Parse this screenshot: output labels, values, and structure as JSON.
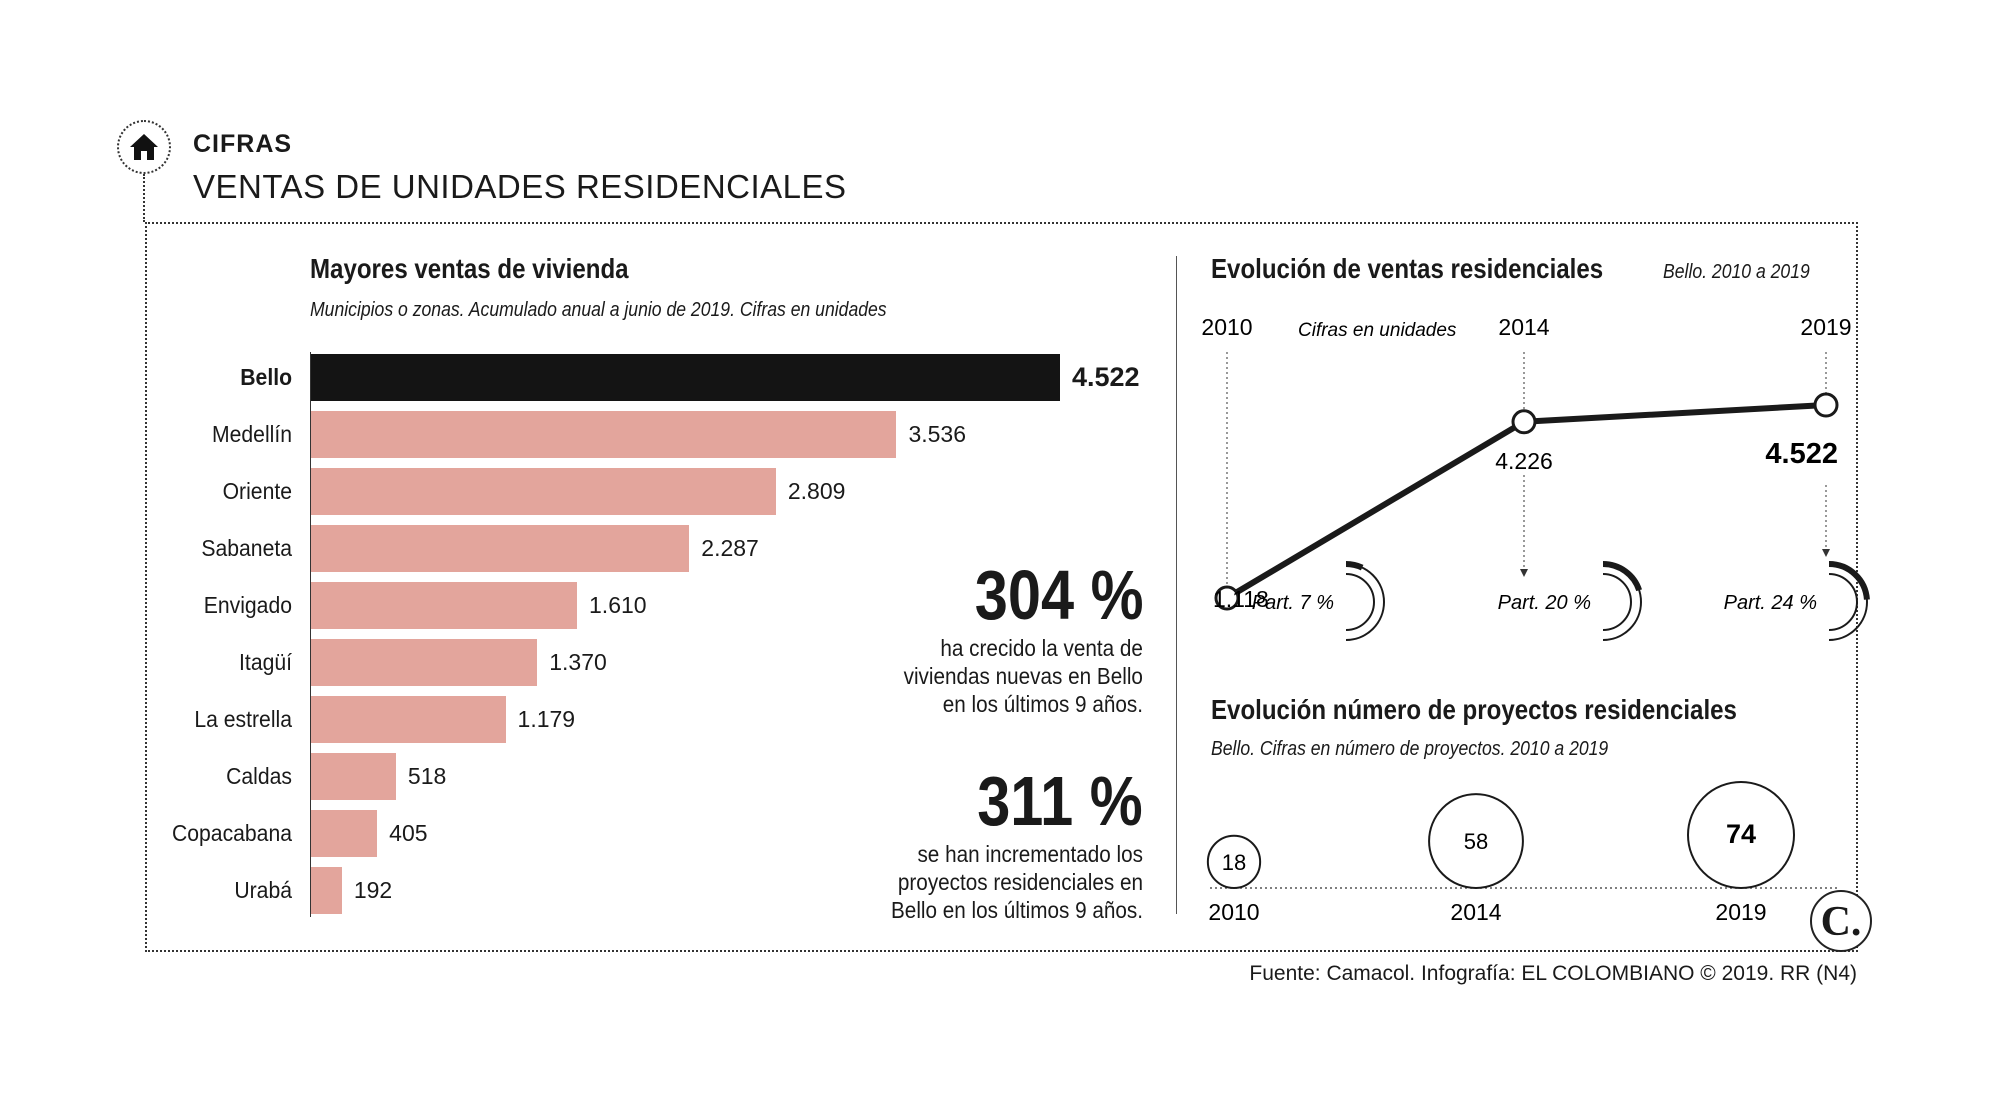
{
  "header": {
    "section": "CIFRAS",
    "title": "VENTAS DE UNIDADES RESIDENCIALES"
  },
  "source": "Fuente: Camacol. Infografía: EL COLOMBIANO © 2019. RR (N4)",
  "logo_text": "C.",
  "colors": {
    "highlight_bar": "#141414",
    "bar": "#e3a59c",
    "line": "#1a1a1a"
  },
  "chart_data": [
    {
      "type": "bar",
      "orientation": "horizontal",
      "title": "Mayores ventas de vivienda",
      "subtitle": "Municipios o zonas. Acumulado anual a junio de 2019. Cifras en unidades",
      "categories": [
        "Bello",
        "Medellín",
        "Oriente",
        "Sabaneta",
        "Envigado",
        "Itagüí",
        "La estrella",
        "Caldas",
        "Copacabana",
        "Urabá"
      ],
      "values": [
        4522,
        3536,
        2809,
        2287,
        1610,
        1370,
        1179,
        518,
        405,
        192
      ],
      "labels": [
        "4.522",
        "3.536",
        "2.809",
        "2.287",
        "1.610",
        "1.370",
        "1.179",
        "518",
        "405",
        "192"
      ],
      "highlight": "Bello",
      "xlim": [
        0,
        4522
      ]
    },
    {
      "type": "line",
      "title": "Evolución de ventas residenciales",
      "subtitle": "Bello. 2010 a 2019",
      "unit_note": "Cifras en unidades",
      "x": [
        "2010",
        "2014",
        "2019"
      ],
      "series": [
        {
          "values": [
            1118,
            4226,
            4522
          ],
          "labels": [
            "1.118",
            "4.226",
            "4.522"
          ]
        }
      ],
      "participation": [
        {
          "label": "Part. 7 %",
          "value": 7
        },
        {
          "label": "Part. 20 %",
          "value": 20
        },
        {
          "label": "Part. 24 %",
          "value": 24
        }
      ]
    },
    {
      "type": "bubble",
      "title": "Evolución número de proyectos residenciales",
      "subtitle": "Bello. Cifras en número de proyectos. 2010 a 2019",
      "x": [
        "2010",
        "2014",
        "2019"
      ],
      "values": [
        18,
        58,
        74
      ],
      "labels": [
        "18",
        "58",
        "74"
      ]
    }
  ],
  "highlights": [
    {
      "value": "304 %",
      "text": [
        "ha crecido la venta de",
        "viviendas nuevas en Bello",
        "en los últimos 9 años."
      ]
    },
    {
      "value": "311 %",
      "text": [
        "se han incrementado los",
        "proyectos residenciales en",
        "Bello en los últimos 9 años."
      ]
    }
  ]
}
